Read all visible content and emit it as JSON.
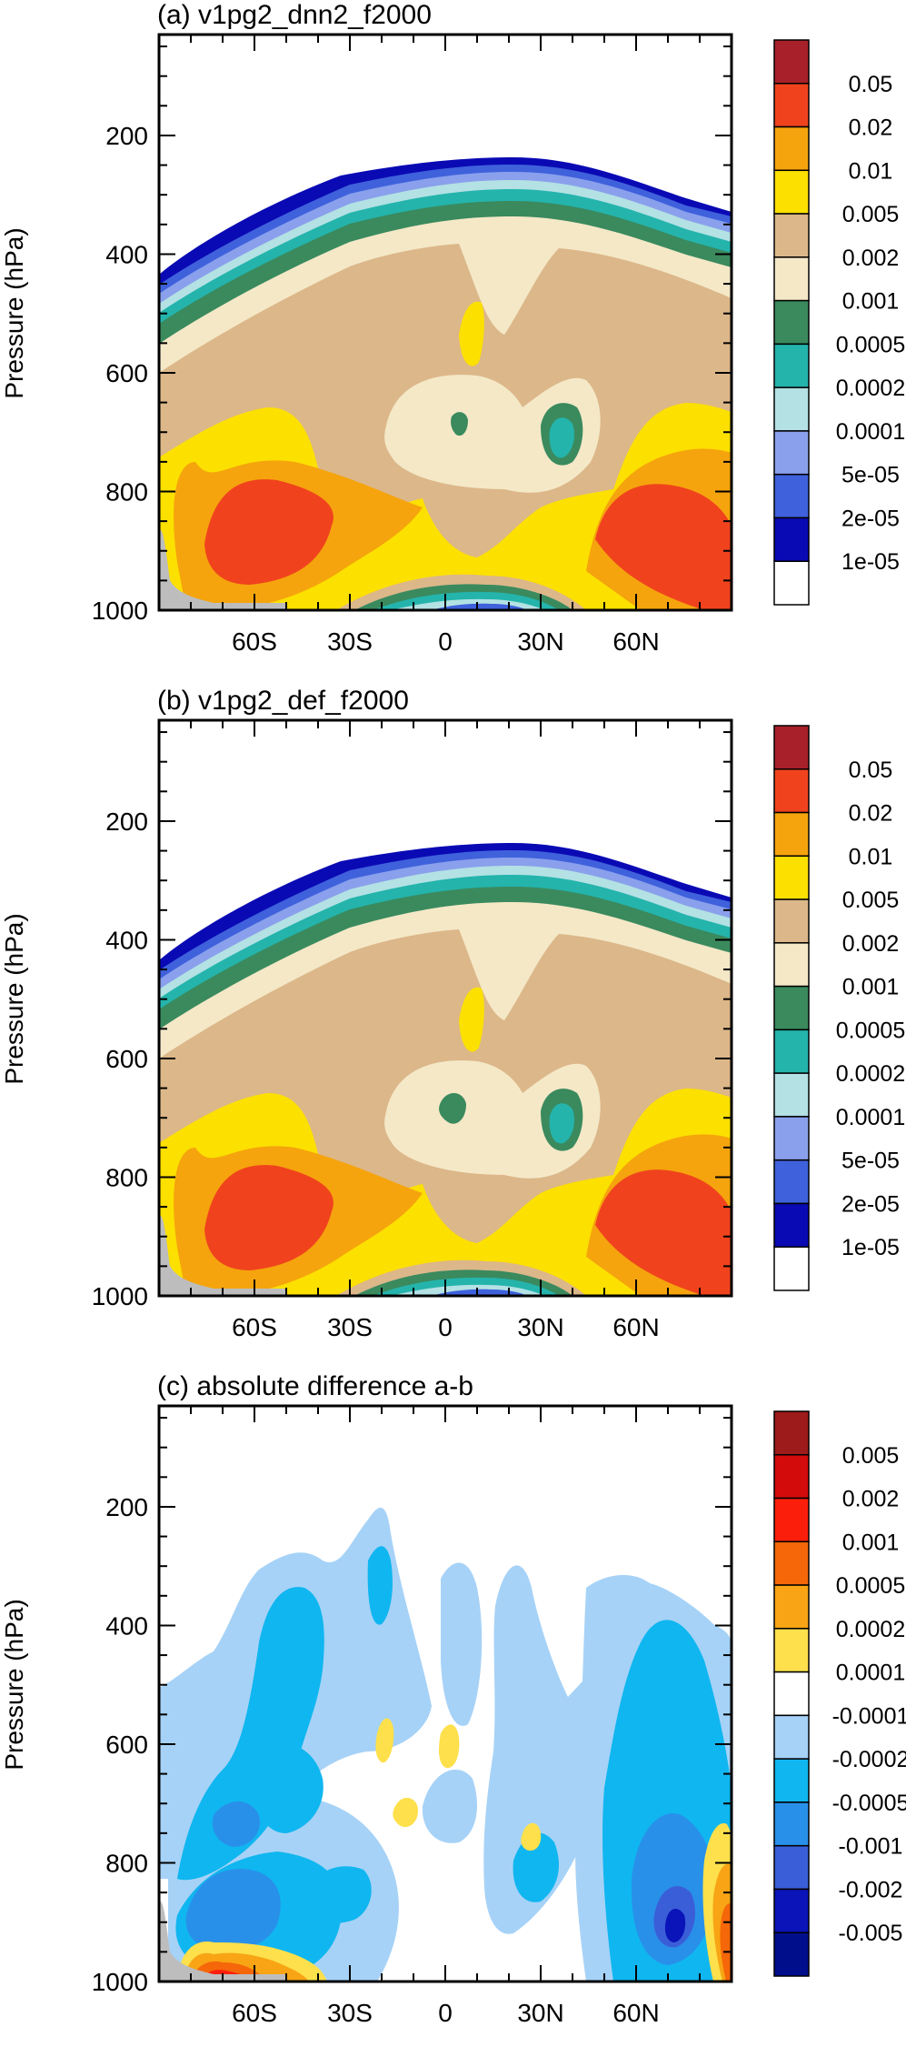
{
  "chart_data": [
    {
      "type": "contour",
      "title": "(a) v1pg2_dnn2_f2000",
      "ylabel": "Pressure (hPa)",
      "yticks": [
        200,
        400,
        600,
        800,
        1000
      ],
      "ylim": [
        1000,
        30
      ],
      "xticks": [
        "60S",
        "30S",
        "0",
        "30N",
        "60N"
      ],
      "xtick_values": [
        -60,
        -30,
        0,
        30,
        60
      ],
      "xlim": [
        -90,
        90
      ],
      "legend_labels": [
        "0.05",
        "0.02",
        "0.01",
        "0.005",
        "0.002",
        "0.001",
        "0.0005",
        "0.0002",
        "0.0001",
        "5e-05",
        "2e-05",
        "1e-05"
      ],
      "legend_colors": [
        "#a8212a",
        "#f0431d",
        "#f5a40d",
        "#fce000",
        "#dcb789",
        "#f4e8c7",
        "#3a8a5e",
        "#24b4ac",
        "#b3e1e4",
        "#8aa0ec",
        "#3f61dc",
        "#0a0ab4",
        "#ffffff"
      ],
      "missing_color": "#bdbdbd"
    },
    {
      "type": "contour",
      "title": "(b) v1pg2_def_f2000",
      "ylabel": "Pressure (hPa)",
      "yticks": [
        200,
        400,
        600,
        800,
        1000
      ],
      "ylim": [
        1000,
        30
      ],
      "xticks": [
        "60S",
        "30S",
        "0",
        "30N",
        "60N"
      ],
      "xtick_values": [
        -60,
        -30,
        0,
        30,
        60
      ],
      "xlim": [
        -90,
        90
      ],
      "legend_labels": [
        "0.05",
        "0.02",
        "0.01",
        "0.005",
        "0.002",
        "0.001",
        "0.0005",
        "0.0002",
        "0.0001",
        "5e-05",
        "2e-05",
        "1e-05"
      ],
      "legend_colors": [
        "#a8212a",
        "#f0431d",
        "#f5a40d",
        "#fce000",
        "#dcb789",
        "#f4e8c7",
        "#3a8a5e",
        "#24b4ac",
        "#b3e1e4",
        "#8aa0ec",
        "#3f61dc",
        "#0a0ab4",
        "#ffffff"
      ],
      "missing_color": "#bdbdbd"
    },
    {
      "type": "contour",
      "title": "(c) absolute difference a-b",
      "ylabel": "Pressure (hPa)",
      "yticks": [
        200,
        400,
        600,
        800,
        1000
      ],
      "ylim": [
        1000,
        30
      ],
      "xticks": [
        "60S",
        "30S",
        "0",
        "30N",
        "60N"
      ],
      "xtick_values": [
        -60,
        -30,
        0,
        30,
        60
      ],
      "xlim": [
        -90,
        90
      ],
      "legend_labels": [
        "0.005",
        "0.002",
        "0.001",
        "0.0005",
        "0.0002",
        "0.0001",
        "-0.0001",
        "-0.0002",
        "-0.0005",
        "-0.001",
        "-0.002",
        "-0.005"
      ],
      "legend_colors": [
        "#9e1b1b",
        "#d40b0b",
        "#fb1f0b",
        "#f56709",
        "#f8a414",
        "#fde04b",
        "#ffffff",
        "#a6d2f7",
        "#10b6f0",
        "#2990ea",
        "#3a5ed8",
        "#0a14b8",
        "#000e8c"
      ],
      "missing_color": "#bdbdbd"
    }
  ]
}
